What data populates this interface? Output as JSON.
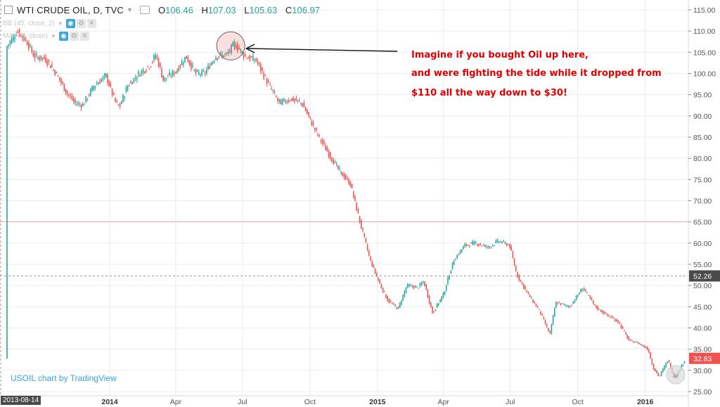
{
  "header": {
    "symbol": "WTI CRUDE OIL, D, TVC",
    "open_label": "O",
    "open": "106.46",
    "high_label": "H",
    "high": "107.03",
    "low_label": "L",
    "low": "105.63",
    "close_label": "C",
    "close": "106.97"
  },
  "indicators": [
    {
      "label": "BB (45, close, 2)"
    },
    {
      "label": "MA (45, close)"
    }
  ],
  "watermark": "USOIL chart by TradingView",
  "annotation": {
    "line1": "Imagine if you bought Oil up here,",
    "line2": "and were fighting the tide while it dropped from",
    "line3": "$110 all the way down to $30!"
  },
  "crosshair_date": "2013-08-14",
  "colors": {
    "up": "#26a69a",
    "down": "#ef5350",
    "annotation": "#e00000",
    "current_price": "#ef5350",
    "crosshair_price_tag": "#4a4a4a",
    "watermark": "#3aa3d8"
  },
  "chart_data": {
    "type": "candlestick",
    "title": "WTI CRUDE OIL, D, TVC",
    "xlabel": "",
    "ylabel": "",
    "ylim": [
      25,
      115
    ],
    "y_ticks": [
      "115.00",
      "110.00",
      "105.00",
      "100.00",
      "95.00",
      "90.00",
      "85.00",
      "80.00",
      "75.00",
      "70.00",
      "65.00",
      "60.00",
      "55.00",
      "50.00",
      "45.00",
      "40.00",
      "35.00",
      "30.00",
      "25.00"
    ],
    "x_ticks": [
      "2014",
      "Apr",
      "Jul",
      "Oct",
      "2015",
      "Apr",
      "Jul",
      "Oct",
      "2016"
    ],
    "price_path": [
      [
        "2013-08-14",
        106.5
      ],
      [
        "2013-08-28",
        110.0
      ],
      [
        "2013-09-10",
        107.5
      ],
      [
        "2013-09-20",
        104.0
      ],
      [
        "2013-10-05",
        103.5
      ],
      [
        "2013-10-20",
        100.0
      ],
      [
        "2013-11-05",
        95.0
      ],
      [
        "2013-11-15",
        93.0
      ],
      [
        "2013-11-25",
        92.5
      ],
      [
        "2013-12-10",
        97.0
      ],
      [
        "2013-12-27",
        99.5
      ],
      [
        "2014-01-08",
        93.5
      ],
      [
        "2014-01-14",
        92.0
      ],
      [
        "2014-01-25",
        97.0
      ],
      [
        "2014-02-10",
        100.0
      ],
      [
        "2014-02-25",
        102.0
      ],
      [
        "2014-03-05",
        104.5
      ],
      [
        "2014-03-15",
        98.5
      ],
      [
        "2014-04-01",
        100.5
      ],
      [
        "2014-04-15",
        104.0
      ],
      [
        "2014-04-28",
        100.0
      ],
      [
        "2014-05-10",
        100.0
      ],
      [
        "2014-05-25",
        104.0
      ],
      [
        "2014-06-10",
        104.5
      ],
      [
        "2014-06-20",
        107.0
      ],
      [
        "2014-07-05",
        104.0
      ],
      [
        "2014-07-20",
        103.0
      ],
      [
        "2014-08-05",
        97.5
      ],
      [
        "2014-08-20",
        93.0
      ],
      [
        "2014-09-05",
        94.0
      ],
      [
        "2014-09-20",
        93.0
      ],
      [
        "2014-10-10",
        86.0
      ],
      [
        "2014-10-25",
        81.5
      ],
      [
        "2014-11-10",
        77.0
      ],
      [
        "2014-11-25",
        74.0
      ],
      [
        "2014-12-08",
        65.0
      ],
      [
        "2014-12-22",
        56.0
      ],
      [
        "2015-01-05",
        50.0
      ],
      [
        "2015-01-15",
        46.5
      ],
      [
        "2015-01-29",
        44.5
      ],
      [
        "2015-02-10",
        50.0
      ],
      [
        "2015-02-25",
        49.5
      ],
      [
        "2015-03-05",
        51.0
      ],
      [
        "2015-03-17",
        43.5
      ],
      [
        "2015-04-01",
        48.0
      ],
      [
        "2015-04-15",
        56.0
      ],
      [
        "2015-04-30",
        59.5
      ],
      [
        "2015-05-15",
        60.0
      ],
      [
        "2015-06-01",
        59.0
      ],
      [
        "2015-06-15",
        60.5
      ],
      [
        "2015-06-30",
        59.5
      ],
      [
        "2015-07-10",
        52.5
      ],
      [
        "2015-07-25",
        48.0
      ],
      [
        "2015-08-10",
        44.0
      ],
      [
        "2015-08-24",
        38.5
      ],
      [
        "2015-09-01",
        46.0
      ],
      [
        "2015-09-20",
        45.0
      ],
      [
        "2015-10-08",
        49.5
      ],
      [
        "2015-10-25",
        45.0
      ],
      [
        "2015-11-10",
        43.0
      ],
      [
        "2015-11-25",
        41.5
      ],
      [
        "2015-12-10",
        37.0
      ],
      [
        "2015-12-22",
        36.5
      ],
      [
        "2016-01-05",
        35.0
      ],
      [
        "2016-01-12",
        30.5
      ],
      [
        "2016-01-20",
        28.5
      ],
      [
        "2016-02-01",
        32.5
      ],
      [
        "2016-02-10",
        28.0
      ],
      [
        "2016-02-25",
        32.8
      ]
    ],
    "horizontal_line": 65.0,
    "crosshair_price_label": "52.26",
    "crosshair_price": 52.26,
    "current_price_label": "32.83",
    "current_price": 32.83,
    "highlight": {
      "date": "2014-06-15",
      "price": 106.5
    }
  }
}
